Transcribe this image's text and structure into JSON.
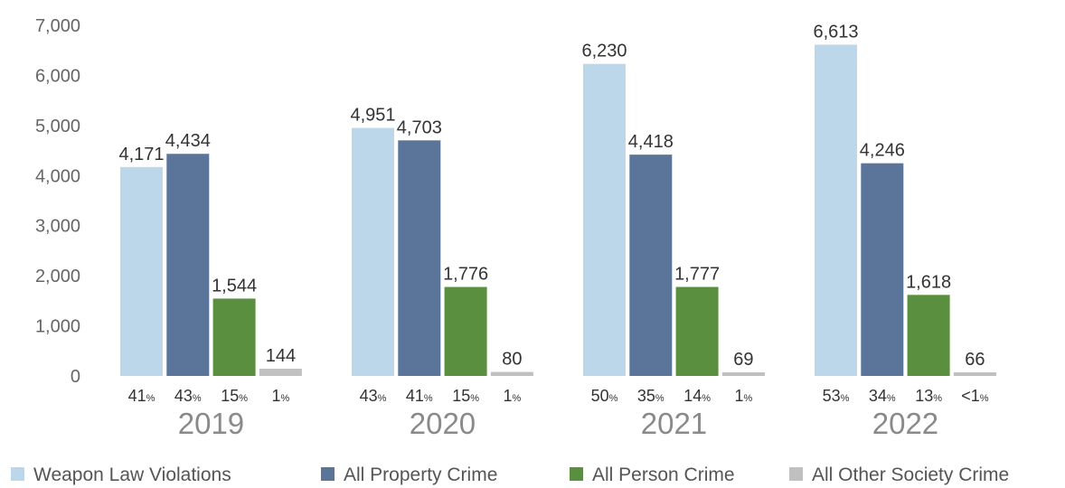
{
  "chart_data": {
    "type": "bar",
    "categories": [
      "2019",
      "2020",
      "2021",
      "2022"
    ],
    "series": [
      {
        "name": "Weapon Law Violations",
        "color": "#bdd7ea",
        "values": [
          4171,
          4951,
          6230,
          6613
        ],
        "labels": [
          "4,171",
          "4,951",
          "6,230",
          "6,613"
        ],
        "shares": [
          "41",
          "43",
          "50",
          "53"
        ]
      },
      {
        "name": "All Property Crime",
        "color": "#5b7499",
        "values": [
          4434,
          4703,
          4418,
          4246
        ],
        "labels": [
          "4,434",
          "4,703",
          "4,418",
          "4,246"
        ],
        "shares": [
          "43",
          "41",
          "35",
          "34"
        ]
      },
      {
        "name": "All Person Crime",
        "color": "#5a8f3f",
        "values": [
          1544,
          1776,
          1777,
          1618
        ],
        "labels": [
          "1,544",
          "1,776",
          "1,777",
          "1,618"
        ],
        "shares": [
          "15",
          "15",
          "14",
          "13"
        ]
      },
      {
        "name": "All Other Society Crime",
        "color": "#c0c0c0",
        "values": [
          144,
          80,
          69,
          66
        ],
        "labels": [
          "144",
          "80",
          "69",
          "66"
        ],
        "shares": [
          "1",
          "1",
          "1",
          "<1"
        ]
      }
    ],
    "share_unit": "%",
    "yticks": [
      "0",
      "1,000",
      "2,000",
      "3,000",
      "4,000",
      "5,000",
      "6,000",
      "7,000"
    ],
    "ylim": [
      0,
      7000
    ],
    "grid": false,
    "legend": "bottom"
  }
}
